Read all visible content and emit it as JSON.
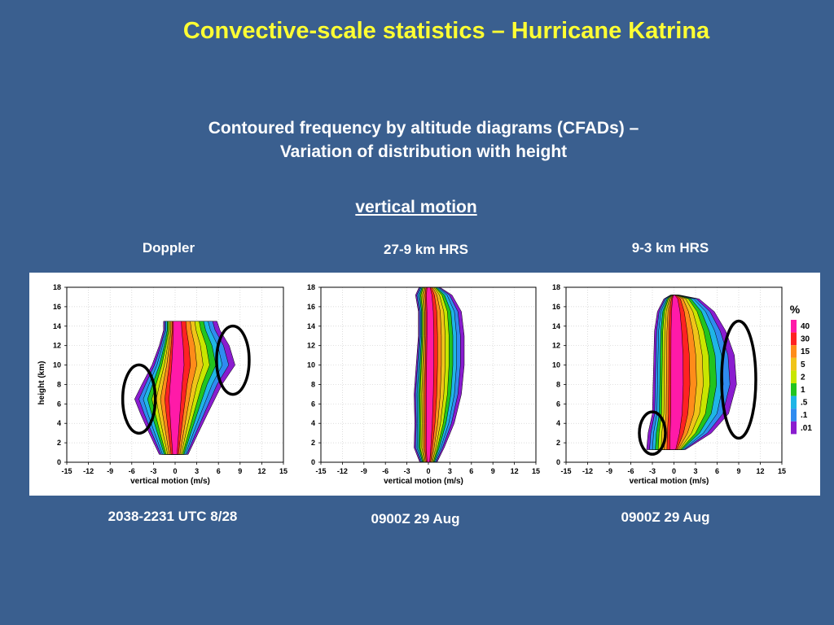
{
  "slide": {
    "title": "Convective-scale statistics – Hurricane Katrina",
    "subtitle_line1": "Contoured frequency by altitude diagrams (CFADs) –",
    "subtitle_line2": "Variation of distribution with height",
    "topic": "vertical motion"
  },
  "panels": [
    {
      "label": "Doppler",
      "caption": "2038-2231 UTC 8/28"
    },
    {
      "label": "27-9 km HRS",
      "caption": "0900Z 29 Aug"
    },
    {
      "label": "9-3 km HRS",
      "caption": "0900Z 29 Aug"
    }
  ],
  "colorbar": {
    "title": "%",
    "levels": [
      "40",
      "30",
      "15",
      "5",
      "2",
      "1",
      ".5",
      ".1",
      ".01"
    ],
    "colors": [
      "#ff1aa8",
      "#ff2222",
      "#ff8c1a",
      "#f0c419",
      "#c8e600",
      "#22c41e",
      "#1fb5e6",
      "#2f8cf0",
      "#8a1ccf"
    ]
  },
  "chart_data": [
    {
      "type": "heatmap",
      "name": "Doppler",
      "xlabel": "vertical motion (m/s)",
      "ylabel": "height (km)",
      "xlim": [
        -15,
        15
      ],
      "ylim": [
        0,
        18
      ],
      "xticks": [
        "-15",
        "-12",
        "-9",
        "-6",
        "-3",
        "0",
        "3",
        "6",
        "9",
        "12",
        "15"
      ],
      "yticks": [
        "0",
        "2",
        "4",
        "6",
        "8",
        "10",
        "12",
        "14",
        "16",
        "18"
      ],
      "outer_envelope_top_km": 14.5,
      "outer_envelope_min_ms": -6,
      "outer_envelope_max_ms": 8,
      "highlighted_regions": [
        {
          "x_center_ms": -5,
          "y_center_km": 6.5
        },
        {
          "x_center_ms": 8,
          "y_center_km": 10.5
        }
      ]
    },
    {
      "type": "heatmap",
      "name": "27-9 km HRS",
      "xlabel": "vertical motion (m/s)",
      "xlim": [
        -15,
        15
      ],
      "ylim": [
        0,
        18
      ],
      "xticks": [
        "-15",
        "-12",
        "-9",
        "-6",
        "-3",
        "0",
        "3",
        "6",
        "9",
        "12",
        "15"
      ],
      "yticks": [
        "0",
        "2",
        "4",
        "6",
        "8",
        "10",
        "12",
        "14",
        "16",
        "18"
      ],
      "outer_envelope_top_km": 18,
      "outer_envelope_min_ms": -2,
      "outer_envelope_max_ms": 5
    },
    {
      "type": "heatmap",
      "name": "9-3 km HRS",
      "xlabel": "vertical motion (m/s)",
      "xlim": [
        -15,
        15
      ],
      "ylim": [
        0,
        18
      ],
      "xticks": [
        "-15",
        "-12",
        "-9",
        "-6",
        "-3",
        "0",
        "3",
        "6",
        "9",
        "12",
        "15"
      ],
      "yticks": [
        "0",
        "2",
        "4",
        "6",
        "8",
        "10",
        "12",
        "14",
        "16",
        "18"
      ],
      "outer_envelope_top_km": 17,
      "outer_envelope_min_ms": -4,
      "outer_envelope_max_ms": 8,
      "highlighted_regions": [
        {
          "x_center_ms": -3,
          "y_center_km": 3
        },
        {
          "x_center_ms": 9,
          "y_center_km": 8.5
        }
      ]
    }
  ]
}
